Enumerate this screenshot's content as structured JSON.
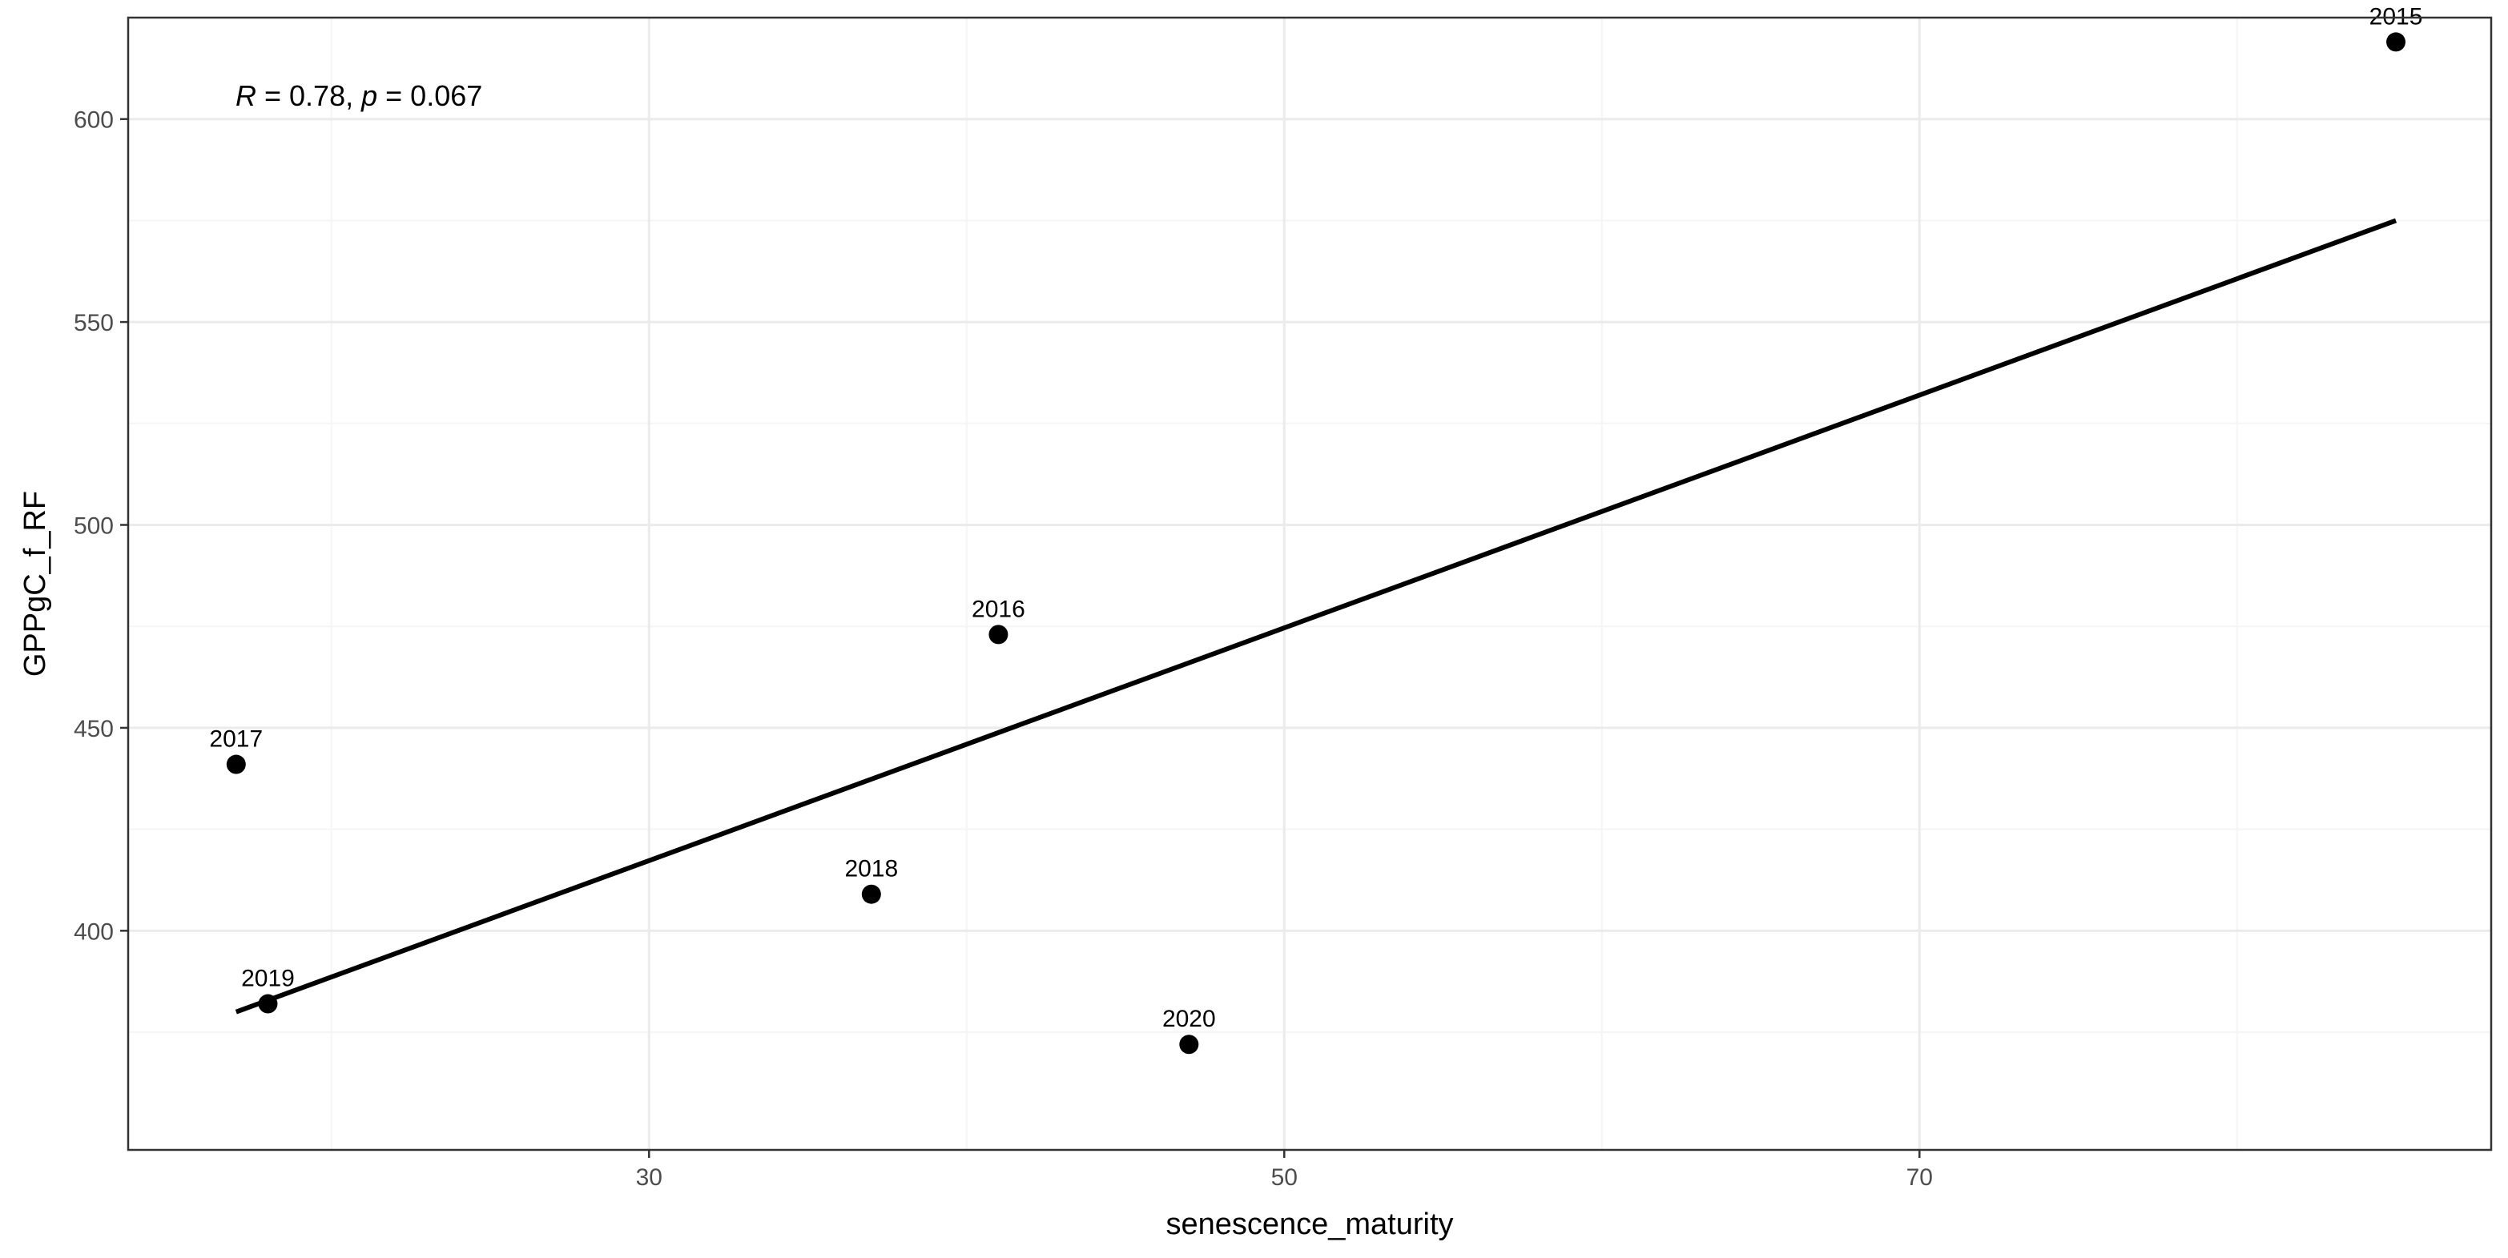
{
  "chart_data": {
    "type": "scatter",
    "xlabel": "senescence_maturity",
    "ylabel": "GPPgC_f_RF",
    "xlim": [
      13.6,
      88.0
    ],
    "ylim": [
      346,
      625
    ],
    "x_ticks": [
      30,
      50,
      70
    ],
    "x_minor_ticks": [
      20,
      40,
      60,
      80
    ],
    "y_ticks": [
      400,
      450,
      500,
      550,
      600
    ],
    "y_minor_ticks": [
      375,
      425,
      475,
      525,
      575
    ],
    "grid": true,
    "points": [
      {
        "label": "2015",
        "x": 85,
        "y": 619
      },
      {
        "label": "2016",
        "x": 41,
        "y": 473
      },
      {
        "label": "2017",
        "x": 17,
        "y": 441
      },
      {
        "label": "2018",
        "x": 37,
        "y": 409
      },
      {
        "label": "2019",
        "x": 18,
        "y": 382
      },
      {
        "label": "2020",
        "x": 47,
        "y": 372
      }
    ],
    "regression_line": {
      "x": [
        17,
        85
      ],
      "y": [
        380,
        575
      ]
    },
    "annotation": {
      "r_symbol": "R",
      "r_value": " = 0.78, ",
      "p_symbol": "p",
      "p_value": " = 0.067"
    },
    "colors": {
      "points": "#000000",
      "line": "#000000",
      "panel_border": "#333333",
      "grid_major": "#ebebeb",
      "grid_minor": "#f5f5f5"
    }
  }
}
